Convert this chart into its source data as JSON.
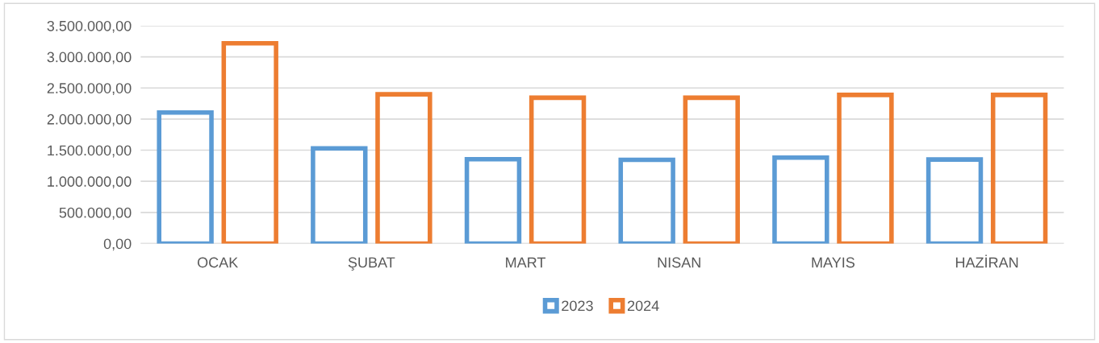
{
  "chart_data": {
    "type": "bar",
    "categories": [
      "OCAK",
      "ŞUBAT",
      "MART",
      "NISAN",
      "MAYIS",
      "HAZİRAN"
    ],
    "series": [
      {
        "name": "2023",
        "color": "#5b9bd5",
        "values": [
          2105000,
          1529000,
          1355000,
          1345000,
          1380000,
          1350000
        ]
      },
      {
        "name": "2024",
        "color": "#ed7d31",
        "values": [
          3217000,
          2398000,
          2343000,
          2343000,
          2388000,
          2388000
        ]
      }
    ],
    "ylim": [
      0,
      3500000
    ],
    "yticks": [
      {
        "value": 0,
        "label": "0,00"
      },
      {
        "value": 500000,
        "label": "500.000,00"
      },
      {
        "value": 1000000,
        "label": "1.000.000,00"
      },
      {
        "value": 1500000,
        "label": "1.500.000,00"
      },
      {
        "value": 2000000,
        "label": "2.000.000,00"
      },
      {
        "value": 2500000,
        "label": "2.500.000,00"
      },
      {
        "value": 3000000,
        "label": "3.000.000,00"
      },
      {
        "value": 3500000,
        "label": "3.500.000,00"
      }
    ],
    "grid": "y",
    "legend": "bottom"
  }
}
